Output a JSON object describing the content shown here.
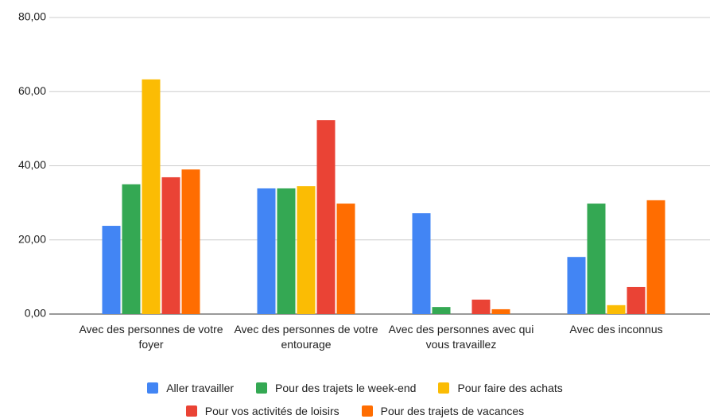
{
  "chart_data": {
    "type": "bar",
    "categories": [
      "Avec des personnes de votre foyer",
      "Avec des personnes de votre entourage",
      "Avec des personnes avec qui vous travaillez",
      "Avec des inconnus"
    ],
    "series": [
      {
        "name": "Aller travailler",
        "color": "#4285f4",
        "values": [
          23.8,
          33.9,
          27.2,
          15.4
        ]
      },
      {
        "name": "Pour des trajets le week-end",
        "color": "#34a853",
        "values": [
          35.0,
          33.9,
          1.9,
          29.8
        ]
      },
      {
        "name": "Pour faire des achats",
        "color": "#fbbc04",
        "values": [
          63.3,
          34.5,
          0,
          2.4
        ]
      },
      {
        "name": "Pour vos activités de loisirs",
        "color": "#ea4335",
        "values": [
          36.9,
          52.3,
          3.9,
          7.3
        ]
      },
      {
        "name": "Pour des trajets de vacances",
        "color": "#ff6d01",
        "values": [
          39.0,
          29.8,
          1.3,
          30.7
        ]
      }
    ],
    "ylim": [
      0,
      80
    ],
    "yticks": [
      {
        "value": 0,
        "label": "0,00"
      },
      {
        "value": 20,
        "label": "20,00"
      },
      {
        "value": 40,
        "label": "40,00"
      },
      {
        "value": 60,
        "label": "60,00"
      },
      {
        "value": 80,
        "label": "80,00"
      }
    ],
    "grid": true,
    "legend": "bottom"
  }
}
